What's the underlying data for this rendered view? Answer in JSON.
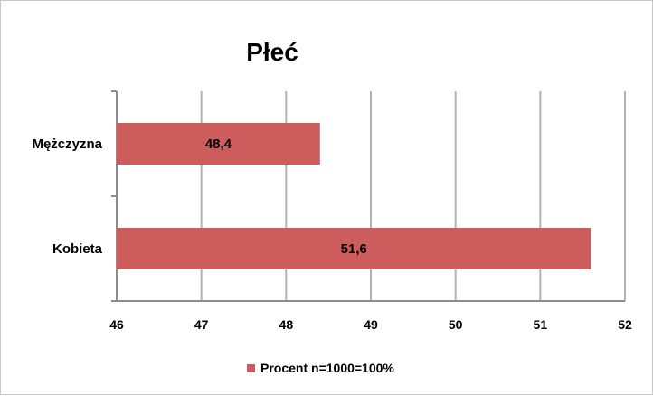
{
  "chart_data": {
    "type": "bar",
    "orientation": "horizontal",
    "title": "Płeć",
    "categories": [
      "Mężczyzna",
      "Kobieta"
    ],
    "series": [
      {
        "name": "Procent n=1000=100%",
        "values": [
          48.4,
          51.6
        ],
        "value_labels": [
          "48,4",
          "51,6"
        ],
        "color": "#cd5c5c"
      }
    ],
    "xlim": [
      46,
      52
    ],
    "x_ticks": [
      "46",
      "47",
      "48",
      "49",
      "50",
      "51",
      "52"
    ],
    "grid": true,
    "legend_position": "bottom"
  },
  "colors": {
    "bar": "#cd5c5c",
    "grid": "#b3b3b3",
    "axis": "#8c8c8c"
  }
}
